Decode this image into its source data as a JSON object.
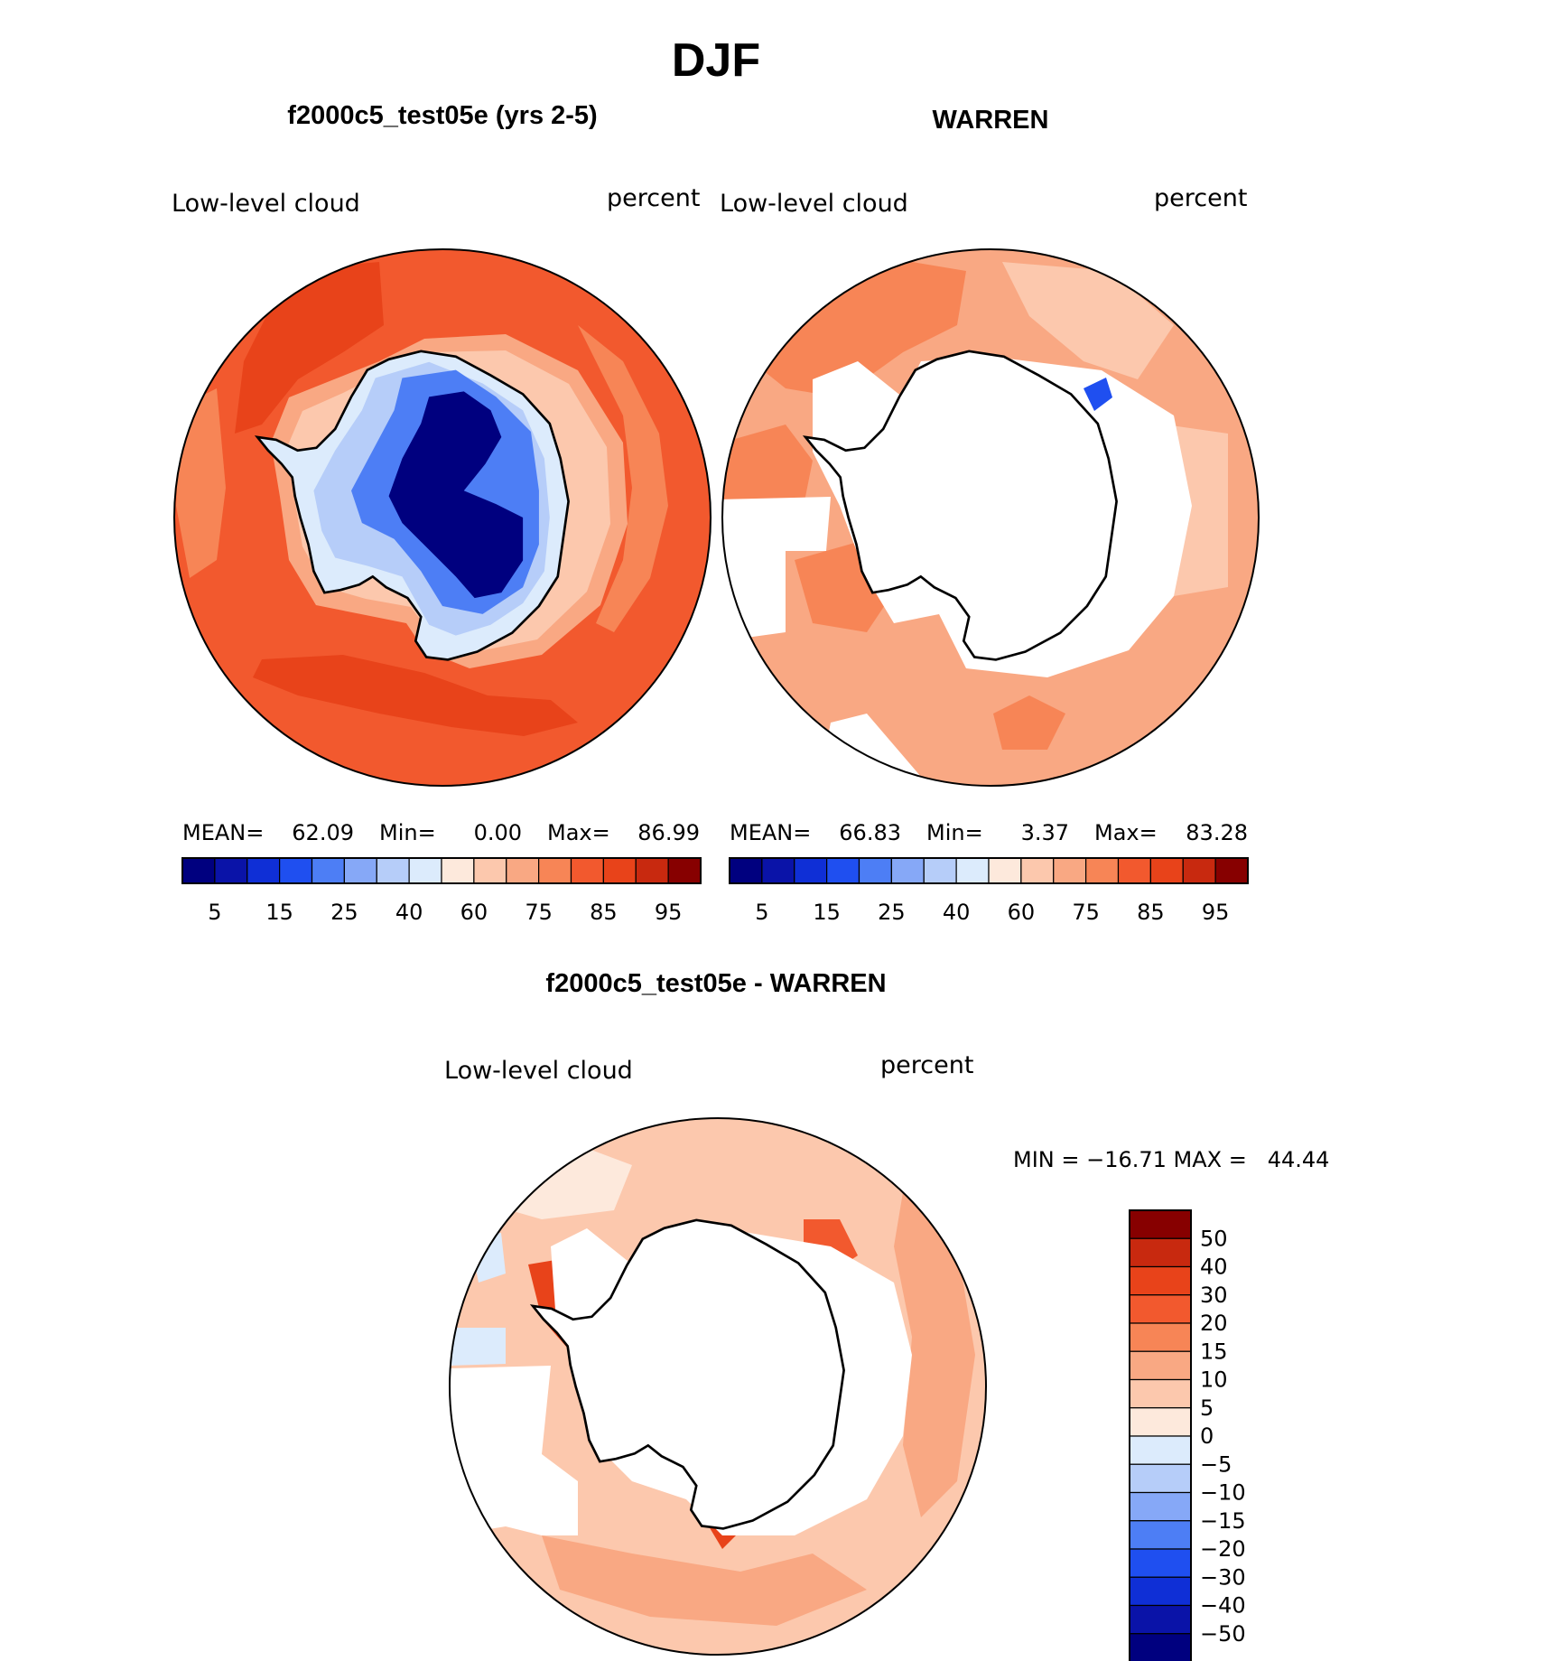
{
  "page_title": "DJF",
  "chart_data": [
    {
      "type": "heatmap",
      "projection": "south-polar-stereographic",
      "title": "f2000c5_test05e (yrs 2-5)",
      "variable": "Low-level cloud",
      "units": "percent",
      "stats": {
        "mean_label": "MEAN=",
        "mean": "62.09",
        "min_label": "Min=",
        "min": "0.00",
        "max_label": "Max=",
        "max": "86.99"
      },
      "colorbar": {
        "orientation": "horizontal",
        "levels": [
          5,
          10,
          15,
          20,
          25,
          30,
          40,
          50,
          60,
          70,
          75,
          80,
          85,
          90,
          95
        ],
        "tick_labels": [
          "5",
          "15",
          "25",
          "40",
          "60",
          "75",
          "85",
          "95"
        ],
        "colors": [
          "#00007f",
          "#0a13a8",
          "#0f2fd6",
          "#1f4ff0",
          "#4d7ef5",
          "#86a8f7",
          "#b6cdf9",
          "#dcebfc",
          "#fde9dc",
          "#fcc8ad",
          "#f9a883",
          "#f78556",
          "#f2592e",
          "#e8431a",
          "#c8290f",
          "#870000"
        ]
      },
      "field_summary": "Antarctic continent 0-25% (deep blue), coastal margins 40-60%, Southern Ocean 75-90%"
    },
    {
      "type": "heatmap",
      "projection": "south-polar-stereographic",
      "title": "WARREN",
      "variable": "Low-level cloud",
      "units": "percent",
      "stats": {
        "mean_label": "MEAN=",
        "mean": "66.83",
        "min_label": "Min=",
        "min": "3.37",
        "max_label": "Max=",
        "max": "83.28"
      },
      "colorbar": {
        "orientation": "horizontal",
        "levels": [
          5,
          10,
          15,
          20,
          25,
          30,
          40,
          50,
          60,
          70,
          75,
          80,
          85,
          90,
          95
        ],
        "tick_labels": [
          "5",
          "15",
          "25",
          "40",
          "60",
          "75",
          "85",
          "95"
        ],
        "colors": [
          "#00007f",
          "#0a13a8",
          "#0f2fd6",
          "#1f4ff0",
          "#4d7ef5",
          "#86a8f7",
          "#b6cdf9",
          "#dcebfc",
          "#fde9dc",
          "#fcc8ad",
          "#f9a883",
          "#f78556",
          "#f2592e",
          "#e8431a",
          "#c8290f",
          "#870000"
        ]
      },
      "field_summary": "Ocean-only observations 60-85%; continent and sea-ice sectors missing (white)"
    },
    {
      "type": "heatmap",
      "projection": "south-polar-stereographic",
      "title": "f2000c5_test05e - WARREN",
      "variable": "Low-level cloud",
      "units": "percent",
      "stats": {
        "text": "MIN = −16.71 MAX =   44.44",
        "min": -16.71,
        "max": 44.44
      },
      "colorbar": {
        "orientation": "vertical",
        "levels": [
          -50,
          -40,
          -30,
          -20,
          -15,
          -10,
          -5,
          0,
          5,
          10,
          15,
          20,
          30,
          40,
          50
        ],
        "tick_labels": [
          "50",
          "40",
          "30",
          "20",
          "15",
          "10",
          "5",
          "0",
          "−5",
          "−10",
          "−15",
          "−20",
          "−30",
          "−40",
          "−50"
        ],
        "colors": [
          "#870000",
          "#c8290f",
          "#e8431a",
          "#f2592e",
          "#f78556",
          "#f9a883",
          "#fcc8ad",
          "#fde9dc",
          "#dcebfc",
          "#b6cdf9",
          "#86a8f7",
          "#4d7ef5",
          "#1f4ff0",
          "#0f2fd6",
          "#0a13a8",
          "#00007f"
        ]
      },
      "field_summary": "Mostly positive 5-20% over ocean, maxima 30-40% near coasts, small negative patches near ice edge"
    }
  ]
}
